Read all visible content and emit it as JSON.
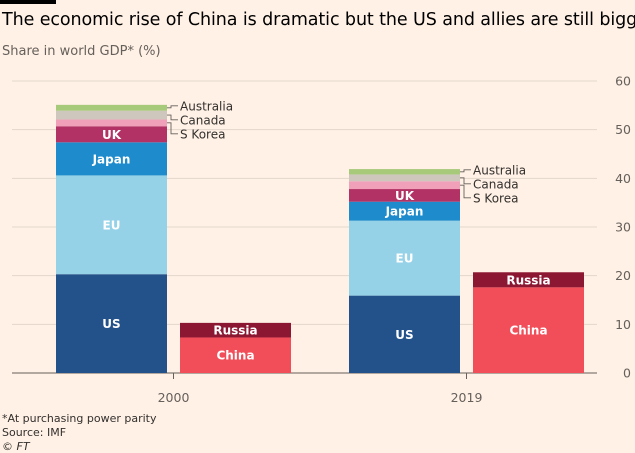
{
  "title": "The economic rise of China is dramatic but the US and allies are still bigger",
  "subtitle": "Share in world GDP* (%)",
  "footnote": "*At purchasing power parity",
  "source": "Source: IMF",
  "credit": "© FT",
  "chart_data": {
    "type": "bar",
    "stacked": true,
    "categories": [
      "2000",
      "2019"
    ],
    "ylim": [
      0,
      60
    ],
    "yticks": [
      0,
      10,
      20,
      30,
      40,
      50,
      60
    ],
    "grid": true,
    "groups": [
      {
        "category": "2000",
        "stacks": [
          [
            {
              "name": "US",
              "value": 20.3,
              "color": "#23518a",
              "label": "US",
              "label_color": "#ffffff"
            },
            {
              "name": "EU",
              "value": 20.3,
              "color": "#95d2e8",
              "label": "EU",
              "label_color": "#ffffff"
            },
            {
              "name": "Japan",
              "value": 6.8,
              "color": "#1e8ccc",
              "label": "Japan",
              "label_color": "#ffffff"
            },
            {
              "name": "UK",
              "value": 3.3,
              "color": "#b33265",
              "label": "UK",
              "label_color": "#ffffff"
            },
            {
              "name": "S Korea",
              "value": 1.4,
              "color": "#f0a0b9",
              "callout": "S Korea"
            },
            {
              "name": "Canada",
              "value": 1.8,
              "color": "#cdc7bd",
              "callout": "Canada"
            },
            {
              "name": "Australia",
              "value": 1.2,
              "color": "#a7c97a",
              "callout": "Australia"
            }
          ],
          [
            {
              "name": "China",
              "value": 7.3,
              "color": "#f24e59",
              "label": "China",
              "label_color": "#ffffff"
            },
            {
              "name": "Russia",
              "value": 3.0,
              "color": "#8c1733",
              "label": "Russia",
              "label_color": "#ffffff"
            }
          ]
        ]
      },
      {
        "category": "2019",
        "stacks": [
          [
            {
              "name": "US",
              "value": 15.9,
              "color": "#23518a",
              "label": "US",
              "label_color": "#ffffff"
            },
            {
              "name": "EU",
              "value": 15.4,
              "color": "#95d2e8",
              "label": "EU",
              "label_color": "#ffffff"
            },
            {
              "name": "Japan",
              "value": 3.9,
              "color": "#1e8ccc",
              "label": "Japan",
              "label_color": "#ffffff"
            },
            {
              "name": "UK",
              "value": 2.6,
              "color": "#b33265",
              "label": "UK",
              "label_color": "#ffffff"
            },
            {
              "name": "S Korea",
              "value": 1.6,
              "color": "#f0a0b9",
              "callout": "S Korea"
            },
            {
              "name": "Canada",
              "value": 1.4,
              "color": "#cdc7bd",
              "callout": "Canada"
            },
            {
              "name": "Australia",
              "value": 1.1,
              "color": "#a7c97a",
              "callout": "Australia"
            }
          ],
          [
            {
              "name": "China",
              "value": 17.6,
              "color": "#f24e59",
              "label": "China",
              "label_color": "#ffffff"
            },
            {
              "name": "Russia",
              "value": 3.1,
              "color": "#8c1733",
              "label": "Russia",
              "label_color": "#ffffff"
            }
          ]
        ]
      }
    ]
  }
}
